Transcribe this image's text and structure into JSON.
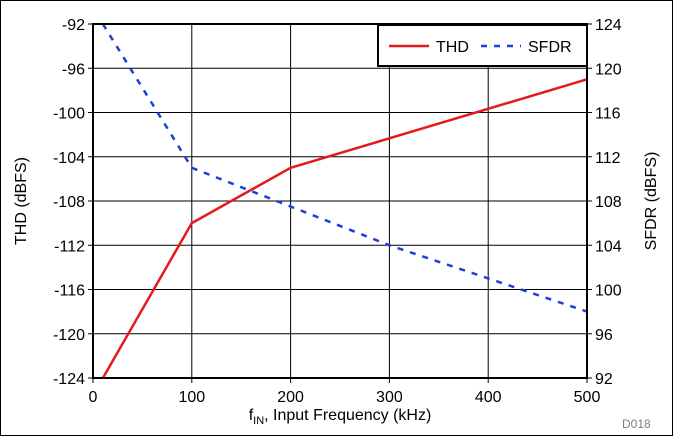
{
  "chart_data": {
    "type": "line",
    "xlabel": "f",
    "xlabel_sub": "IN",
    "xlabel_rest": ", Input Frequency (kHz)",
    "ylabel_left": "THD (dBFS)",
    "ylabel_right": "SFDR (dBFS)",
    "footnote": "D018",
    "xlim": [
      0,
      500
    ],
    "ylim_left": [
      -124,
      -92
    ],
    "ylim_right": [
      92,
      124
    ],
    "x_ticks": [
      "0",
      "100",
      "200",
      "300",
      "400",
      "500"
    ],
    "y_left_ticks": [
      "-92",
      "-96",
      "-100",
      "-104",
      "-108",
      "-112",
      "-116",
      "-120",
      "-124"
    ],
    "y_right_ticks": [
      "124",
      "120",
      "116",
      "112",
      "108",
      "104",
      "100",
      "96",
      "92"
    ],
    "grid": true,
    "legend_position": "top-right",
    "series": [
      {
        "name": "THD",
        "axis": "left",
        "color": "#e41a1c",
        "style": "solid",
        "points": [
          [
            10,
            -124
          ],
          [
            100,
            -110
          ],
          [
            200,
            -105
          ],
          [
            500,
            -97
          ]
        ]
      },
      {
        "name": "SFDR",
        "axis": "right",
        "color": "#1f3fd6",
        "style": "dashed",
        "points": [
          [
            10,
            124
          ],
          [
            100,
            111
          ],
          [
            200,
            107.5
          ],
          [
            300,
            104
          ],
          [
            400,
            101
          ],
          [
            500,
            98
          ]
        ]
      }
    ]
  }
}
